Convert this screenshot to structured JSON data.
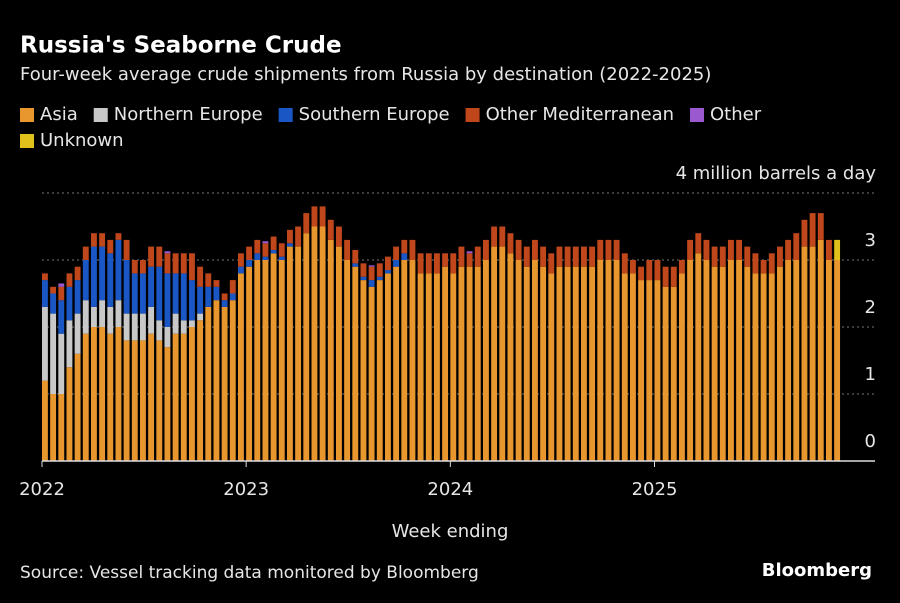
{
  "chart_data": {
    "type": "stacked_bar",
    "title": "Russia's Seaborne Crude",
    "subtitle": "Four-week average crude shipments from Russia by destination (2022-2025)",
    "x_label": "Week ending",
    "source": "Source: Vessel tracking data monitored by Bloomberg",
    "brand": "Bloomberg",
    "xlim": [
      2022,
      2026.08
    ],
    "xticks": [
      2022,
      2023,
      2024,
      2025
    ],
    "ylim": [
      0,
      4
    ],
    "yticks": [
      0,
      1,
      2,
      3,
      {
        "value": 4,
        "label": "4 million barrels a day"
      }
    ],
    "grid": true,
    "x": [
      2022.0,
      2022.04,
      2022.08,
      2022.12,
      2022.16,
      2022.2,
      2022.24,
      2022.28,
      2022.32,
      2022.36,
      2022.4,
      2022.44,
      2022.48,
      2022.52,
      2022.56,
      2022.6,
      2022.64,
      2022.68,
      2022.72,
      2022.76,
      2022.8,
      2022.84,
      2022.88,
      2022.92,
      2022.96,
      2023.0,
      2023.04,
      2023.08,
      2023.12,
      2023.16,
      2023.2,
      2023.24,
      2023.28,
      2023.32,
      2023.36,
      2023.4,
      2023.44,
      2023.48,
      2023.52,
      2023.56,
      2023.6,
      2023.64,
      2023.68,
      2023.72,
      2023.76,
      2023.8,
      2023.84,
      2023.88,
      2023.92,
      2023.96,
      2024.0,
      2024.04,
      2024.08,
      2024.12,
      2024.16,
      2024.2,
      2024.24,
      2024.28,
      2024.32,
      2024.36,
      2024.4,
      2024.44,
      2024.48,
      2024.52,
      2024.56,
      2024.6,
      2024.64,
      2024.68,
      2024.72,
      2024.76,
      2024.8,
      2024.84,
      2024.88,
      2024.92,
      2024.96,
      2025.0,
      2025.04,
      2025.08,
      2025.12,
      2025.16,
      2025.2,
      2025.24,
      2025.28,
      2025.32,
      2025.36,
      2025.4,
      2025.44,
      2025.48,
      2025.52,
      2025.56,
      2025.6,
      2025.64,
      2025.68,
      2025.72,
      2025.76,
      2025.8,
      2025.84,
      2025.88
    ],
    "series": [
      {
        "name": "Asia",
        "color": "#e8962e",
        "values": [
          1.2,
          1.0,
          1.0,
          1.4,
          1.6,
          1.9,
          2.0,
          2.0,
          1.9,
          2.0,
          1.8,
          1.8,
          1.8,
          1.9,
          1.8,
          1.7,
          1.9,
          1.9,
          2.0,
          2.1,
          2.3,
          2.4,
          2.3,
          2.4,
          2.8,
          2.9,
          3.0,
          3.0,
          3.1,
          3.0,
          3.2,
          3.2,
          3.4,
          3.5,
          3.5,
          3.3,
          3.2,
          3.0,
          2.9,
          2.7,
          2.6,
          2.7,
          2.8,
          2.9,
          3.0,
          3.0,
          2.8,
          2.8,
          2.8,
          2.9,
          2.8,
          2.9,
          2.9,
          2.9,
          3.0,
          3.2,
          3.2,
          3.1,
          3.0,
          2.9,
          3.0,
          2.9,
          2.8,
          2.9,
          2.9,
          2.9,
          2.9,
          2.9,
          3.0,
          3.0,
          3.0,
          2.8,
          2.8,
          2.7,
          2.7,
          2.7,
          2.6,
          2.6,
          2.8,
          3.0,
          3.1,
          3.0,
          2.9,
          2.9,
          3.0,
          3.0,
          2.9,
          2.8,
          2.8,
          2.8,
          2.9,
          3.0,
          3.0,
          3.2,
          3.2,
          3.3,
          3.0,
          3.0
        ]
      },
      {
        "name": "Northern Europe",
        "color": "#c8c8c8",
        "values": [
          1.1,
          1.2,
          0.9,
          0.7,
          0.6,
          0.5,
          0.3,
          0.4,
          0.4,
          0.4,
          0.4,
          0.4,
          0.4,
          0.4,
          0.3,
          0.3,
          0.3,
          0.2,
          0.1,
          0.1,
          0,
          0,
          0,
          0,
          0,
          0,
          0,
          0,
          0,
          0,
          0,
          0,
          0,
          0,
          0,
          0,
          0,
          0,
          0,
          0,
          0,
          0,
          0,
          0,
          0,
          0,
          0,
          0,
          0,
          0,
          0,
          0,
          0,
          0,
          0,
          0,
          0,
          0,
          0,
          0,
          0,
          0,
          0,
          0,
          0,
          0,
          0,
          0,
          0,
          0,
          0,
          0,
          0,
          0,
          0,
          0,
          0,
          0,
          0,
          0,
          0,
          0,
          0,
          0,
          0,
          0,
          0,
          0,
          0,
          0,
          0,
          0,
          0,
          0,
          0,
          0,
          0,
          0
        ]
      },
      {
        "name": "Southern Europe",
        "color": "#1a56c4",
        "values": [
          0.4,
          0.3,
          0.5,
          0.5,
          0.5,
          0.6,
          0.9,
          0.8,
          0.8,
          0.9,
          0.8,
          0.6,
          0.6,
          0.6,
          0.8,
          0.8,
          0.6,
          0.7,
          0.6,
          0.4,
          0.3,
          0.2,
          0.1,
          0.1,
          0.1,
          0.1,
          0.1,
          0.05,
          0.05,
          0.05,
          0.05,
          0,
          0,
          0,
          0,
          0,
          0,
          0,
          0.05,
          0.05,
          0.1,
          0.05,
          0.05,
          0.1,
          0.1,
          0,
          0,
          0,
          0,
          0,
          0,
          0,
          0,
          0,
          0,
          0,
          0,
          0,
          0,
          0,
          0,
          0,
          0,
          0,
          0,
          0,
          0,
          0,
          0,
          0,
          0,
          0,
          0,
          0,
          0,
          0,
          0,
          0,
          0,
          0,
          0,
          0,
          0,
          0,
          0,
          0,
          0,
          0,
          0,
          0,
          0,
          0,
          0,
          0,
          0,
          0,
          0,
          0
        ]
      },
      {
        "name": "Other Mediterranean",
        "color": "#c0461c",
        "values": [
          0.1,
          0.1,
          0.2,
          0.2,
          0.2,
          0.2,
          0.2,
          0.2,
          0.2,
          0.1,
          0.3,
          0.2,
          0.2,
          0.3,
          0.3,
          0.3,
          0.3,
          0.3,
          0.4,
          0.3,
          0.2,
          0.1,
          0.1,
          0.2,
          0.2,
          0.2,
          0.2,
          0.2,
          0.2,
          0.2,
          0.2,
          0.3,
          0.3,
          0.3,
          0.3,
          0.3,
          0.3,
          0.3,
          0.2,
          0.2,
          0.2,
          0.2,
          0.2,
          0.2,
          0.2,
          0.3,
          0.3,
          0.3,
          0.3,
          0.2,
          0.3,
          0.3,
          0.2,
          0.3,
          0.3,
          0.3,
          0.3,
          0.3,
          0.3,
          0.3,
          0.3,
          0.3,
          0.3,
          0.3,
          0.3,
          0.3,
          0.3,
          0.3,
          0.3,
          0.3,
          0.3,
          0.3,
          0.2,
          0.2,
          0.3,
          0.3,
          0.3,
          0.3,
          0.2,
          0.3,
          0.3,
          0.3,
          0.3,
          0.3,
          0.3,
          0.3,
          0.3,
          0.3,
          0.2,
          0.3,
          0.3,
          0.3,
          0.4,
          0.4,
          0.5,
          0.4,
          0.3,
          0
        ]
      },
      {
        "name": "Other",
        "color": "#9b59d0",
        "values": [
          0,
          0,
          0.05,
          0,
          0,
          0,
          0,
          0,
          0,
          0,
          0,
          0,
          0,
          0,
          0,
          0.03,
          0,
          0,
          0,
          0,
          0,
          0,
          0,
          0,
          0,
          0,
          0,
          0.03,
          0,
          0,
          0,
          0,
          0,
          0,
          0,
          0,
          0,
          0,
          0,
          0,
          0.02,
          0,
          0,
          0,
          0,
          0,
          0,
          0,
          0,
          0,
          0,
          0,
          0.03,
          0,
          0,
          0,
          0,
          0,
          0,
          0,
          0,
          0,
          0,
          0,
          0,
          0,
          0,
          0,
          0,
          0,
          0,
          0,
          0,
          0,
          0,
          0,
          0,
          0,
          0,
          0,
          0,
          0,
          0,
          0,
          0,
          0,
          0,
          0,
          0,
          0,
          0,
          0,
          0,
          0,
          0,
          0,
          0,
          0
        ]
      },
      {
        "name": "Unknown",
        "color": "#e0c01a",
        "values": [
          0,
          0,
          0,
          0,
          0,
          0,
          0,
          0,
          0,
          0,
          0,
          0,
          0,
          0,
          0,
          0,
          0,
          0,
          0,
          0,
          0,
          0,
          0,
          0,
          0,
          0,
          0,
          0,
          0,
          0,
          0,
          0,
          0,
          0,
          0,
          0,
          0,
          0,
          0,
          0,
          0,
          0,
          0,
          0,
          0,
          0,
          0,
          0,
          0,
          0,
          0,
          0,
          0,
          0,
          0,
          0,
          0,
          0,
          0,
          0,
          0,
          0,
          0,
          0,
          0,
          0,
          0,
          0,
          0,
          0,
          0,
          0,
          0,
          0,
          0,
          0,
          0,
          0,
          0,
          0,
          0,
          0,
          0,
          0,
          0,
          0,
          0,
          0,
          0,
          0,
          0,
          0,
          0,
          0,
          0,
          0,
          0,
          0.3
        ]
      }
    ]
  }
}
